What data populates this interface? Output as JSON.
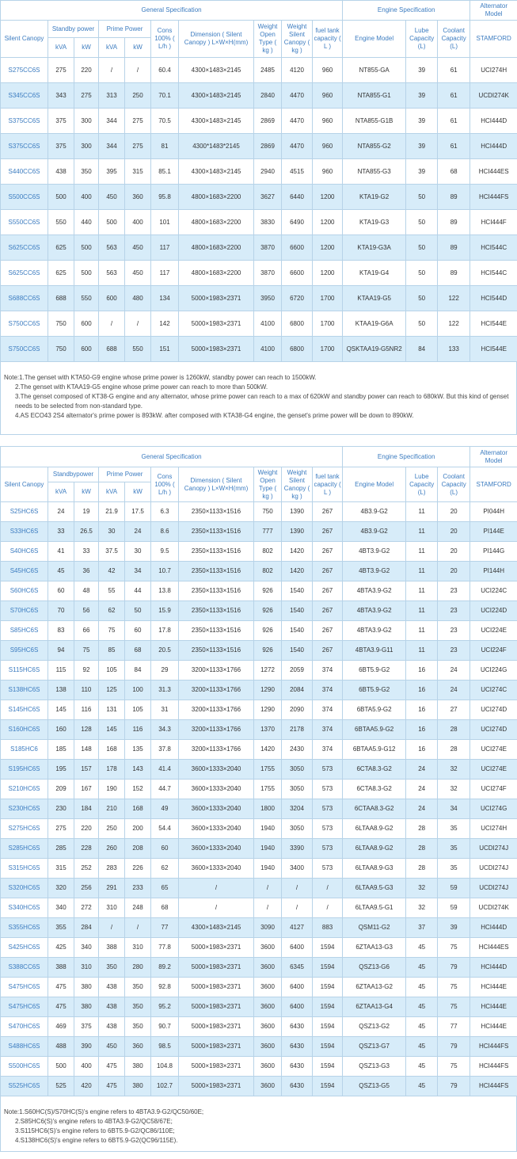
{
  "tables": [
    {
      "group_headers": [
        "General Specification",
        "Engine Specification",
        "Alternator Model"
      ],
      "columns": [
        "Silent Canopy",
        "Standby power",
        "Prime Power",
        "Cons 100% ( L/h )",
        "Dimension ( Silent Canopy ) L×W×H(mm)",
        "Weight Open Type ( kg )",
        "Weight Silent Canopy ( kg )",
        "fuel tank capacity ( L )",
        "Engine Model",
        "Lube Capacity (L)",
        "Coolant Capacity (L)",
        "STAMFORD"
      ],
      "subcolumns": [
        "kVA",
        "kW",
        "kVA",
        "kW"
      ],
      "rows": [
        [
          "S275CC6S",
          "275",
          "220",
          "/",
          "/",
          "60.4",
          "4300×1483×2145",
          "2485",
          "4120",
          "960",
          "NT855-GA",
          "39",
          "61",
          "UCI274H"
        ],
        [
          "S345CC6S",
          "343",
          "275",
          "313",
          "250",
          "70.1",
          "4300×1483×2145",
          "2840",
          "4470",
          "960",
          "NTA855-G1",
          "39",
          "61",
          "UCDI274K"
        ],
        [
          "S375CC6S",
          "375",
          "300",
          "344",
          "275",
          "70.5",
          "4300×1483×2145",
          "2869",
          "4470",
          "960",
          "NTA855-G1B",
          "39",
          "61",
          "HCI444D"
        ],
        [
          "S375CC6S",
          "375",
          "300",
          "344",
          "275",
          "81",
          "4300*1483*2145",
          "2869",
          "4470",
          "960",
          "NTA855-G2",
          "39",
          "61",
          "HCI444D"
        ],
        [
          "S440CC6S",
          "438",
          "350",
          "395",
          "315",
          "85.1",
          "4300×1483×2145",
          "2940",
          "4515",
          "960",
          "NTA855-G3",
          "39",
          "68",
          "HCI444ES"
        ],
        [
          "S500CC6S",
          "500",
          "400",
          "450",
          "360",
          "95.8",
          "4800×1683×2200",
          "3627",
          "6440",
          "1200",
          "KTA19-G2",
          "50",
          "89",
          "HCI444FS"
        ],
        [
          "S550CC6S",
          "550",
          "440",
          "500",
          "400",
          "101",
          "4800×1683×2200",
          "3830",
          "6490",
          "1200",
          "KTA19-G3",
          "50",
          "89",
          "HCI444F"
        ],
        [
          "S625CC6S",
          "625",
          "500",
          "563",
          "450",
          "117",
          "4800×1683×2200",
          "3870",
          "6600",
          "1200",
          "KTA19-G3A",
          "50",
          "89",
          "HCI544C"
        ],
        [
          "S625CC6S",
          "625",
          "500",
          "563",
          "450",
          "117",
          "4800×1683×2200",
          "3870",
          "6600",
          "1200",
          "KTA19-G4",
          "50",
          "89",
          "HCI544C"
        ],
        [
          "S688CC6S",
          "688",
          "550",
          "600",
          "480",
          "134",
          "5000×1983×2371",
          "3950",
          "6720",
          "1700",
          "KTAA19-G5",
          "50",
          "122",
          "HCI544D"
        ],
        [
          "S750CC6S",
          "750",
          "600",
          "/",
          "/",
          "142",
          "5000×1983×2371",
          "4100",
          "6800",
          "1700",
          "KTAA19-G6A",
          "50",
          "122",
          "HCI544E"
        ],
        [
          "S750CC6S",
          "750",
          "600",
          "688",
          "550",
          "151",
          "5000×1983×2371",
          "4100",
          "6800",
          "1700",
          "QSKTAA19-G5NR2",
          "84",
          "133",
          "HCI544E"
        ]
      ],
      "notes": [
        "Note:1.The genset with KTA50-G9 engine whose prime power is 1260kW, standby power can reach to 1500kW.",
        "2.The genset with KTAA19-G5 engine whose prime power can reach to more than 500kW.",
        "3.The genset composed of KT38-G engine and any alternator, whose prime power can reach to a max of 620kW and standby power can reach to 680kW. But this kind of genset needs to be selected from non-standard type.",
        "4.AS ECO43 2S4 alternator's prime power is 893kW. after composed with KTA38-G4 engine, the genset's prime power will be down to 890kW."
      ]
    },
    {
      "group_headers": [
        "General Specification",
        "Engine Specification",
        "Alternator Model"
      ],
      "columns": [
        "Silent Canopy",
        "Standbypower",
        "Prime Power",
        "Cons 100% ( L/h )",
        "Dimension ( Silent Canopy ) L×W×H(mm)",
        "Weight Open Type ( kg )",
        "Weight Silent Canopy ( kg )",
        "fuel tank capacity ( L )",
        "Engine Model",
        "Lube Capacity (L)",
        "Coolant Capacity (L)",
        "STAMFORD"
      ],
      "subcolumns": [
        "kVA",
        "kW",
        "kVA",
        "kW"
      ],
      "rows": [
        [
          "S25HC6S",
          "24",
          "19",
          "21.9",
          "17.5",
          "6.3",
          "2350×1133×1516",
          "750",
          "1390",
          "267",
          "4B3.9-G2",
          "11",
          "20",
          "PI044H"
        ],
        [
          "S33HC6S",
          "33",
          "26.5",
          "30",
          "24",
          "8.6",
          "2350×1133×1516",
          "777",
          "1390",
          "267",
          "4B3.9-G2",
          "11",
          "20",
          "PI144E"
        ],
        [
          "S40HC6S",
          "41",
          "33",
          "37.5",
          "30",
          "9.5",
          "2350×1133×1516",
          "802",
          "1420",
          "267",
          "4BT3.9-G2",
          "11",
          "20",
          "PI144G"
        ],
        [
          "S45HC6S",
          "45",
          "36",
          "42",
          "34",
          "10.7",
          "2350×1133×1516",
          "802",
          "1420",
          "267",
          "4BT3.9-G2",
          "11",
          "20",
          "PI144H"
        ],
        [
          "S60HC6S",
          "60",
          "48",
          "55",
          "44",
          "13.8",
          "2350×1133×1516",
          "926",
          "1540",
          "267",
          "4BTA3.9-G2",
          "11",
          "23",
          "UCI224C"
        ],
        [
          "S70HC6S",
          "70",
          "56",
          "62",
          "50",
          "15.9",
          "2350×1133×1516",
          "926",
          "1540",
          "267",
          "4BTA3.9-G2",
          "11",
          "23",
          "UCI224D"
        ],
        [
          "S85HC6S",
          "83",
          "66",
          "75",
          "60",
          "17.8",
          "2350×1133×1516",
          "926",
          "1540",
          "267",
          "4BTA3.9-G2",
          "11",
          "23",
          "UCI224E"
        ],
        [
          "S95HC6S",
          "94",
          "75",
          "85",
          "68",
          "20.5",
          "2350×1133×1516",
          "926",
          "1540",
          "267",
          "4BTA3.9-G11",
          "11",
          "23",
          "UCI224F"
        ],
        [
          "S115HC6S",
          "115",
          "92",
          "105",
          "84",
          "29",
          "3200×1133×1766",
          "1272",
          "2059",
          "374",
          "6BT5.9-G2",
          "16",
          "24",
          "UCI224G"
        ],
        [
          "S138HC6S",
          "138",
          "110",
          "125",
          "100",
          "31.3",
          "3200×1133×1766",
          "1290",
          "2084",
          "374",
          "6BT5.9-G2",
          "16",
          "24",
          "UCI274C"
        ],
        [
          "S145HC6S",
          "145",
          "116",
          "131",
          "105",
          "31",
          "3200×1133×1766",
          "1290",
          "2090",
          "374",
          "6BTA5.9-G2",
          "16",
          "27",
          "UCI274D"
        ],
        [
          "S160HC6S",
          "160",
          "128",
          "145",
          "116",
          "34.3",
          "3200×1133×1766",
          "1370",
          "2178",
          "374",
          "6BTAA5.9-G2",
          "16",
          "28",
          "UCI274D"
        ],
        [
          "S185HC6",
          "185",
          "148",
          "168",
          "135",
          "37.8",
          "3200×1133×1766",
          "1420",
          "2430",
          "374",
          "6BTAA5.9-G12",
          "16",
          "28",
          "UCI274E"
        ],
        [
          "S195HC6S",
          "195",
          "157",
          "178",
          "143",
          "41.4",
          "3600×1333×2040",
          "1755",
          "3050",
          "573",
          "6CTA8.3-G2",
          "24",
          "32",
          "UCI274E"
        ],
        [
          "S210HC6S",
          "209",
          "167",
          "190",
          "152",
          "44.7",
          "3600×1333×2040",
          "1755",
          "3050",
          "573",
          "6CTA8.3-G2",
          "24",
          "32",
          "UCI274F"
        ],
        [
          "S230HC6S",
          "230",
          "184",
          "210",
          "168",
          "49",
          "3600×1333×2040",
          "1800",
          "3204",
          "573",
          "6CTAA8.3-G2",
          "24",
          "34",
          "UCI274G"
        ],
        [
          "S275HC6S",
          "275",
          "220",
          "250",
          "200",
          "54.4",
          "3600×1333×2040",
          "1940",
          "3050",
          "573",
          "6LTAA8.9-G2",
          "28",
          "35",
          "UCI274H"
        ],
        [
          "S285HC6S",
          "285",
          "228",
          "260",
          "208",
          "60",
          "3600×1333×2040",
          "1940",
          "3390",
          "573",
          "6LTAA8.9-G2",
          "28",
          "35",
          "UCDI274J"
        ],
        [
          "S315HC6S",
          "315",
          "252",
          "283",
          "226",
          "62",
          "3600×1333×2040",
          "1940",
          "3400",
          "573",
          "6LTAA8.9-G3",
          "28",
          "35",
          "UCDI274J"
        ],
        [
          "S320HC6S",
          "320",
          "256",
          "291",
          "233",
          "65",
          "/",
          "/",
          "/",
          "/",
          "6LTAA9.5-G3",
          "32",
          "59",
          "UCDI274J"
        ],
        [
          "S340HC6S",
          "340",
          "272",
          "310",
          "248",
          "68",
          "/",
          "/",
          "/",
          "/",
          "6LTAA9.5-G1",
          "32",
          "59",
          "UCDI274K"
        ],
        [
          "S355HC6S",
          "355",
          "284",
          "/",
          "/",
          "77",
          "4300×1483×2145",
          "3090",
          "4127",
          "883",
          "QSM11-G2",
          "37",
          "39",
          "HCI444D"
        ],
        [
          "S425HC6S",
          "425",
          "340",
          "388",
          "310",
          "77.8",
          "5000×1983×2371",
          "3600",
          "6400",
          "1594",
          "6ZTAA13-G3",
          "45",
          "75",
          "HCI444ES"
        ],
        [
          "S388CC6S",
          "388",
          "310",
          "350",
          "280",
          "89.2",
          "5000×1983×2371",
          "3600",
          "6345",
          "1594",
          "QSZ13-G6",
          "45",
          "79",
          "HCI444D"
        ],
        [
          "S475HC6S",
          "475",
          "380",
          "438",
          "350",
          "92.8",
          "5000×1983×2371",
          "3600",
          "6400",
          "1594",
          "6ZTAA13-G2",
          "45",
          "75",
          "HCI444E"
        ],
        [
          "S475HC6S",
          "475",
          "380",
          "438",
          "350",
          "95.2",
          "5000×1983×2371",
          "3600",
          "6400",
          "1594",
          "6ZTAA13-G4",
          "45",
          "75",
          "HCI444E"
        ],
        [
          "S470HC6S",
          "469",
          "375",
          "438",
          "350",
          "90.7",
          "5000×1983×2371",
          "3600",
          "6430",
          "1594",
          "QSZ13-G2",
          "45",
          "77",
          "HCI444E"
        ],
        [
          "S488HC6S",
          "488",
          "390",
          "450",
          "360",
          "98.5",
          "5000×1983×2371",
          "3600",
          "6430",
          "1594",
          "QSZ13-G7",
          "45",
          "79",
          "HCI444FS"
        ],
        [
          "S500HC6S",
          "500",
          "400",
          "475",
          "380",
          "104.8",
          "5000×1983×2371",
          "3600",
          "6430",
          "1594",
          "QSZ13-G3",
          "45",
          "75",
          "HCI444FS"
        ],
        [
          "S525HC6S",
          "525",
          "420",
          "475",
          "380",
          "102.7",
          "5000×1983×2371",
          "3600",
          "6430",
          "1594",
          "QSZ13-G5",
          "45",
          "79",
          "HCI444FS"
        ]
      ],
      "notes": [
        "Note:1.S60HC(S)/S70HC(S)'s engine refers to 4BTA3.9-G2/QC50/60E;",
        "2.S85HC6(S)'s engine refers to 4BTA3.9-G2/QC58/67E;",
        "3.S115HC6(S)'s engine refers to 6BT5.9-G2/QC86/110E;",
        "4.S138HC6(S)'s engine refers to 6BT5.9-G2(QC96/115E)."
      ]
    }
  ]
}
